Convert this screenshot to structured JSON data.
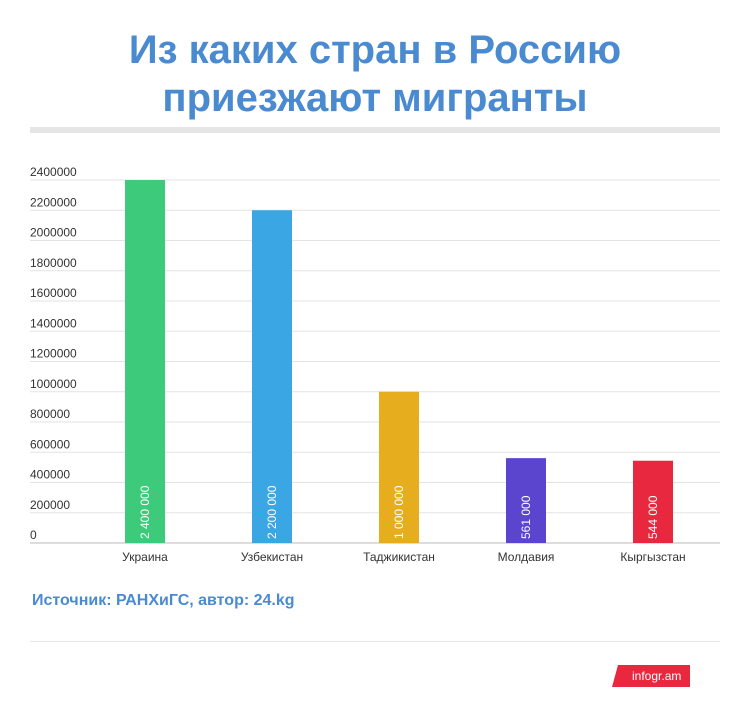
{
  "header": {
    "title_line1": "Из каких стран в Россию",
    "title_line2": "приезжают мигранты"
  },
  "chart_data": {
    "type": "bar",
    "categories": [
      "Украина",
      "Узбекистан",
      "Таджикистан",
      "Молдавия",
      "Кыргызстан"
    ],
    "values": [
      2400000,
      2200000,
      1000000,
      561000,
      544000
    ],
    "data_labels": [
      "2 400 000",
      "2 200 000",
      "1 000 000",
      "561 000",
      "544 000"
    ],
    "colors": [
      "#3dca7a",
      "#3ba6e4",
      "#e6ae1f",
      "#5b45cf",
      "#e8283f"
    ],
    "yticks": [
      "0",
      "200000",
      "400000",
      "600000",
      "800000",
      "1000000",
      "1200000",
      "1400000",
      "1600000",
      "1800000",
      "2000000",
      "2200000",
      "2400000"
    ],
    "ylim": [
      0,
      2400000
    ],
    "grid": true,
    "legend": "none",
    "xlabel": "",
    "ylabel": ""
  },
  "footer": {
    "source": "Источник: РАНХиГС, автор: 24.kg",
    "logo": "infogr.am"
  }
}
